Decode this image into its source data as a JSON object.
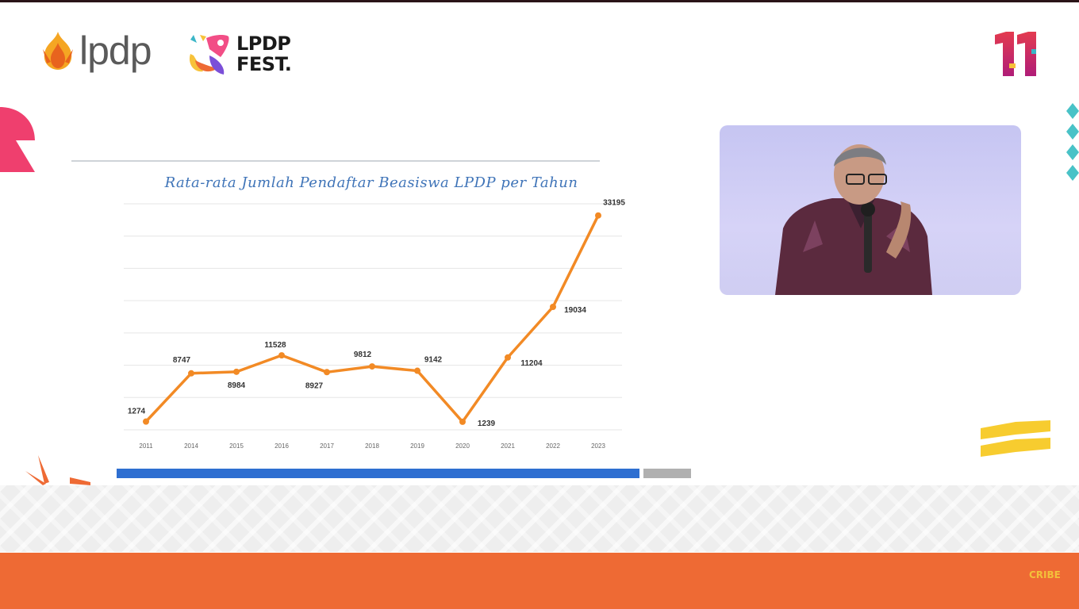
{
  "header": {
    "lpdp_logo_text": "lpdp",
    "fest_line1": "LPDP",
    "fest_line2": "FEST."
  },
  "footer": {
    "watermark": "CRIBE"
  },
  "slide": {
    "progress": 0.91
  },
  "colors": {
    "line": "#f28a25",
    "title": "#3f74b8",
    "progress_blue": "#2e6fd1",
    "orange_band": "#ee6a34"
  },
  "chart_data": {
    "type": "line",
    "title": "Rata-rata Jumlah Pendaftar Beasiswa LPDP per Tahun",
    "xlabel": "",
    "ylabel": "",
    "categories": [
      "2011",
      "2014",
      "2015",
      "2016",
      "2017",
      "2018",
      "2019",
      "2020",
      "2021",
      "2022",
      "2023"
    ],
    "series": [
      {
        "name": "",
        "values": [
          1274,
          8747,
          8984,
          11528,
          8927,
          9812,
          9142,
          1239,
          11204,
          19034,
          33195
        ]
      }
    ],
    "ylim": [
      0,
      35000
    ],
    "grid": true,
    "legend": "none"
  }
}
